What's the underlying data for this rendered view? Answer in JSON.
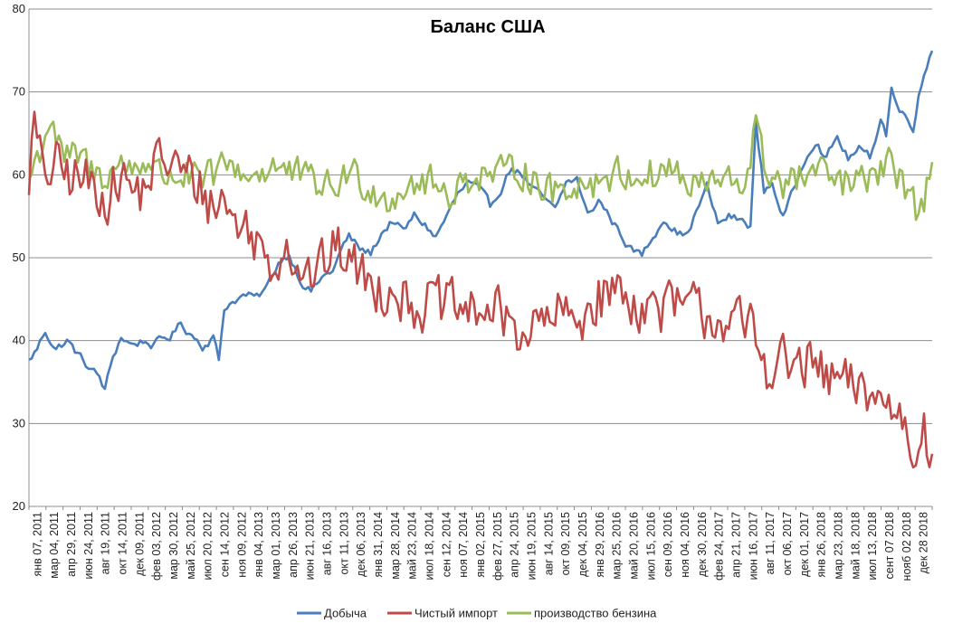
{
  "chart_data": {
    "type": "line",
    "title": "Баланс США",
    "xlabel": "",
    "ylabel": "",
    "ylim": [
      20,
      80
    ],
    "yticks": [
      20,
      30,
      40,
      50,
      60,
      70,
      80
    ],
    "grid": "horizontal",
    "legend_position": "bottom",
    "x_tick_labels": [
      "янв 07, 2011",
      "мар 04, 2011",
      "апр 29, 2011",
      "июн 24, 2011",
      "авг 19, 2011",
      "окт 14, 2011",
      "дек 09, 2011",
      "фев 03, 2012",
      "мар 30, 2012",
      "май 25, 2012",
      "июл 20, 2012",
      "сен 14, 2012",
      "ноя 09, 2012",
      "янв 04, 2013",
      "мар 01, 2013",
      "апр 26, 2013",
      "июн 21, 2013",
      "авг 16, 2013",
      "окт 11, 2013",
      "дек 06, 2013",
      "янв 31, 2014",
      "мар 28, 2014",
      "май 23, 2014",
      "июл 18, 2014",
      "сен 12, 2014",
      "ноя 07, 2014",
      "янв 02, 2015",
      "фев 27, 2015",
      "апр 24, 2015",
      "июн 19, 2015",
      "авг 14, 2015",
      "окт 09, 2015",
      "дек 04, 2015",
      "янв 29, 2016",
      "мар 25, 2016",
      "май 20, 2016",
      "июл 15, 2016",
      "сен 09, 2016",
      "ноя 04, 2016",
      "дек 30, 2016",
      "фев 24, 2017",
      "апр 21, 2017",
      "июн 16, 2017",
      "авг 11, 2017",
      "окт 06, 2017",
      "дек 01, 2017",
      "янв 26, 2018",
      "мар 23, 2018",
      "май 18, 2018",
      "июл 13, 2018",
      "сент 07 2018",
      "нояб 02 2018",
      "дек 28 2018"
    ],
    "series": [
      {
        "name": "Добыча",
        "color": "#4a7ebb",
        "anchors": [
          [
            0,
            37.5
          ],
          [
            3,
            39
          ],
          [
            6,
            41.2
          ],
          [
            10,
            39
          ],
          [
            14,
            40
          ],
          [
            20,
            37.5
          ],
          [
            26,
            35.5
          ],
          [
            28,
            34
          ],
          [
            31,
            38
          ],
          [
            34,
            40.5
          ],
          [
            38,
            39.5
          ],
          [
            42,
            40
          ],
          [
            46,
            39.5
          ],
          [
            52,
            40.5
          ],
          [
            56,
            42
          ],
          [
            61,
            40.5
          ],
          [
            64,
            39.5
          ],
          [
            68,
            40.5
          ],
          [
            70,
            37.5
          ],
          [
            72,
            44
          ],
          [
            76,
            45
          ],
          [
            80,
            45.5
          ],
          [
            84,
            45
          ],
          [
            88,
            46.5
          ],
          [
            92,
            49.5
          ],
          [
            96,
            50.5
          ],
          [
            100,
            47.5
          ],
          [
            104,
            46
          ],
          [
            108,
            47.5
          ],
          [
            112,
            48.5
          ],
          [
            116,
            51.5
          ],
          [
            118,
            52.5
          ],
          [
            122,
            51
          ],
          [
            126,
            50.5
          ],
          [
            130,
            53
          ],
          [
            134,
            54.5
          ],
          [
            138,
            53
          ],
          [
            142,
            55
          ],
          [
            146,
            54
          ],
          [
            150,
            52.5
          ],
          [
            154,
            55
          ],
          [
            158,
            57.5
          ],
          [
            162,
            59
          ],
          [
            166,
            58
          ],
          [
            170,
            56
          ],
          [
            174,
            58.5
          ],
          [
            178,
            61
          ],
          [
            182,
            60
          ],
          [
            186,
            58
          ],
          [
            190,
            57
          ],
          [
            194,
            55.5
          ],
          [
            198,
            59
          ],
          [
            202,
            59.5
          ],
          [
            206,
            55
          ],
          [
            210,
            57
          ],
          [
            214,
            55
          ],
          [
            218,
            53
          ],
          [
            222,
            51
          ],
          [
            226,
            50.3
          ],
          [
            230,
            52.5
          ],
          [
            234,
            55
          ],
          [
            238,
            53.5
          ],
          [
            242,
            52.5
          ],
          [
            246,
            55.5
          ],
          [
            250,
            58.5
          ],
          [
            254,
            54
          ],
          [
            258,
            55
          ],
          [
            262,
            54.5
          ],
          [
            266,
            54
          ],
          [
            268,
            66
          ],
          [
            271,
            58
          ],
          [
            274,
            59
          ],
          [
            278,
            55
          ],
          [
            282,
            58
          ],
          [
            286,
            62
          ],
          [
            290,
            64.5
          ],
          [
            294,
            62
          ],
          [
            298,
            64.5
          ],
          [
            302,
            62
          ],
          [
            306,
            63
          ],
          [
            310,
            62
          ],
          [
            314,
            67
          ],
          [
            316,
            65
          ],
          [
            318,
            70.5
          ],
          [
            321,
            67.5
          ],
          [
            324,
            67
          ],
          [
            326,
            66
          ],
          [
            328,
            69.5
          ],
          [
            330,
            72
          ],
          [
            333,
            75.5
          ]
        ],
        "noise": 0.7
      },
      {
        "name": "Чистый импорт",
        "color": "#be4b48",
        "anchors": [
          [
            0,
            60
          ],
          [
            2,
            66
          ],
          [
            5,
            60
          ],
          [
            10,
            61
          ],
          [
            14,
            60
          ],
          [
            18,
            59.5
          ],
          [
            22,
            59
          ],
          [
            26,
            58
          ],
          [
            30,
            57.5
          ],
          [
            34,
            60
          ],
          [
            38,
            58
          ],
          [
            42,
            58
          ],
          [
            46,
            61
          ],
          [
            50,
            62
          ],
          [
            54,
            61
          ],
          [
            58,
            60
          ],
          [
            62,
            59
          ],
          [
            66,
            57
          ],
          [
            70,
            56
          ],
          [
            72,
            58
          ],
          [
            74,
            55
          ],
          [
            78,
            54
          ],
          [
            82,
            53
          ],
          [
            86,
            51
          ],
          [
            90,
            49
          ],
          [
            94,
            52
          ],
          [
            98,
            50
          ],
          [
            102,
            48
          ],
          [
            106,
            48
          ],
          [
            110,
            50
          ],
          [
            114,
            51
          ],
          [
            118,
            50
          ],
          [
            122,
            48
          ],
          [
            126,
            47
          ],
          [
            130,
            46
          ],
          [
            134,
            47
          ],
          [
            138,
            45
          ],
          [
            142,
            44.5
          ],
          [
            146,
            44
          ],
          [
            150,
            45
          ],
          [
            154,
            44
          ],
          [
            158,
            44
          ],
          [
            162,
            43
          ],
          [
            166,
            44
          ],
          [
            170,
            43.5
          ],
          [
            174,
            43
          ],
          [
            178,
            42
          ],
          [
            182,
            41
          ],
          [
            186,
            41.5
          ],
          [
            190,
            42
          ],
          [
            194,
            43
          ],
          [
            198,
            43
          ],
          [
            202,
            42
          ],
          [
            206,
            44
          ],
          [
            210,
            45
          ],
          [
            214,
            46
          ],
          [
            218,
            46
          ],
          [
            222,
            45
          ],
          [
            226,
            44
          ],
          [
            230,
            44
          ],
          [
            234,
            44
          ],
          [
            238,
            44
          ],
          [
            242,
            44
          ],
          [
            246,
            44
          ],
          [
            250,
            43
          ],
          [
            254,
            43
          ],
          [
            258,
            42
          ],
          [
            262,
            42
          ],
          [
            264,
            41
          ],
          [
            266,
            42
          ],
          [
            268,
            40
          ],
          [
            270,
            38
          ],
          [
            272,
            37
          ],
          [
            276,
            38
          ],
          [
            280,
            37
          ],
          [
            284,
            37
          ],
          [
            288,
            37
          ],
          [
            292,
            36
          ],
          [
            296,
            35
          ],
          [
            300,
            35
          ],
          [
            304,
            34
          ],
          [
            308,
            34
          ],
          [
            312,
            33.5
          ],
          [
            316,
            32
          ],
          [
            320,
            32
          ],
          [
            324,
            29
          ],
          [
            326,
            26
          ],
          [
            328,
            28
          ],
          [
            330,
            33
          ],
          [
            332,
            26
          ],
          [
            333,
            24.5
          ]
        ],
        "noise": 3.0
      },
      {
        "name": "производство бензина",
        "color": "#9bbb59",
        "anchors": [
          [
            0,
            59.5
          ],
          [
            3,
            62
          ],
          [
            5,
            64
          ],
          [
            8,
            67
          ],
          [
            12,
            62
          ],
          [
            16,
            62
          ],
          [
            20,
            62
          ],
          [
            24,
            60
          ],
          [
            28,
            60
          ],
          [
            32,
            61
          ],
          [
            36,
            61
          ],
          [
            40,
            61
          ],
          [
            44,
            62
          ],
          [
            48,
            60
          ],
          [
            52,
            60
          ],
          [
            56,
            60
          ],
          [
            60,
            59.5
          ],
          [
            64,
            59
          ],
          [
            68,
            60
          ],
          [
            72,
            61
          ],
          [
            76,
            61
          ],
          [
            80,
            60
          ],
          [
            84,
            60
          ],
          [
            88,
            61
          ],
          [
            92,
            61
          ],
          [
            96,
            60
          ],
          [
            100,
            60
          ],
          [
            104,
            59
          ],
          [
            108,
            59
          ],
          [
            112,
            58
          ],
          [
            116,
            60
          ],
          [
            120,
            60
          ],
          [
            124,
            59
          ],
          [
            128,
            58
          ],
          [
            132,
            57
          ],
          [
            136,
            58
          ],
          [
            140,
            59
          ],
          [
            144,
            59
          ],
          [
            148,
            59
          ],
          [
            152,
            58
          ],
          [
            156,
            58
          ],
          [
            160,
            59
          ],
          [
            164,
            60
          ],
          [
            168,
            60
          ],
          [
            172,
            60
          ],
          [
            176,
            60
          ],
          [
            180,
            61
          ],
          [
            184,
            60
          ],
          [
            188,
            59
          ],
          [
            192,
            58
          ],
          [
            196,
            58
          ],
          [
            200,
            59
          ],
          [
            204,
            59
          ],
          [
            208,
            59
          ],
          [
            212,
            60
          ],
          [
            216,
            60
          ],
          [
            220,
            60
          ],
          [
            224,
            60
          ],
          [
            228,
            60
          ],
          [
            232,
            60
          ],
          [
            236,
            61
          ],
          [
            240,
            60
          ],
          [
            244,
            58
          ],
          [
            248,
            59
          ],
          [
            252,
            59
          ],
          [
            256,
            59
          ],
          [
            260,
            59
          ],
          [
            264,
            59
          ],
          [
            268,
            66
          ],
          [
            271,
            61
          ],
          [
            274,
            60
          ],
          [
            278,
            59
          ],
          [
            282,
            59
          ],
          [
            286,
            60
          ],
          [
            290,
            60
          ],
          [
            294,
            60
          ],
          [
            298,
            59
          ],
          [
            302,
            59
          ],
          [
            306,
            59
          ],
          [
            310,
            59
          ],
          [
            314,
            61
          ],
          [
            318,
            61
          ],
          [
            322,
            59
          ],
          [
            326,
            58
          ],
          [
            328,
            54.5
          ],
          [
            330,
            57
          ],
          [
            332,
            60
          ],
          [
            333,
            61
          ]
        ],
        "noise": 2.0
      }
    ]
  }
}
